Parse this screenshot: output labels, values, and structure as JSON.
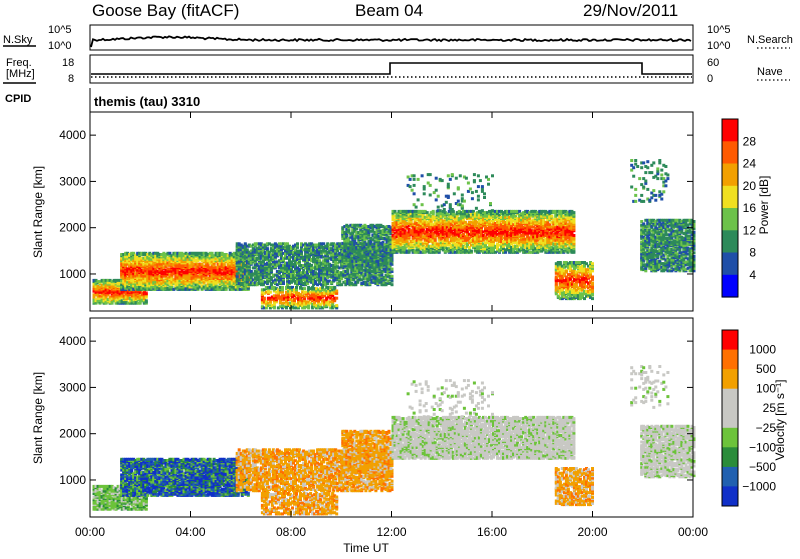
{
  "header": {
    "station": "Goose Bay (fitACF)",
    "beam": "Beam 04",
    "date": "29/Nov/2011"
  },
  "panels": {
    "nsky": {
      "label": "N.Sky",
      "right_label": "N.Search",
      "top_tick": "10^5",
      "bottom_tick": "10^0"
    },
    "freq": {
      "label_line1": "Freq.",
      "label_line2": "[MHz]",
      "right_label": "Nave",
      "left_ticks": [
        "18",
        "8"
      ],
      "right_ticks": [
        "60",
        "0"
      ]
    },
    "cpid": {
      "label": "CPID",
      "program": "themis (tau) 3310"
    }
  },
  "chart_data": [
    {
      "type": "heatmap",
      "name": "power",
      "ylabel": "Slant Range [km]",
      "yticks": [
        1000,
        2000,
        3000,
        4000
      ],
      "ylim": [
        200,
        4500
      ],
      "colorbar_label": "Power [dB]",
      "colorbar_ticks": [
        "28",
        "24",
        "20",
        "16",
        "12",
        "8",
        "4"
      ],
      "colors": [
        "#0000ff",
        "#1f4fa8",
        "#2d8a5a",
        "#6cc24a",
        "#f0e020",
        "#f2a000",
        "#ff5a00",
        "#ff0000"
      ]
    },
    {
      "type": "heatmap",
      "name": "velocity",
      "ylabel": "Slant Range [km]",
      "yticks": [
        1000,
        2000,
        3000,
        4000
      ],
      "ylim": [
        200,
        4500
      ],
      "colorbar_label": "Velocity [m s⁻¹]",
      "colorbar_ticks": [
        "1000",
        "500",
        "100",
        "25",
        "−25",
        "−100",
        "−500",
        "−1000"
      ],
      "colors": [
        "#1030c8",
        "#2060b0",
        "#2a8c3a",
        "#6cc33a",
        "#c8c8c4",
        "#c8c8c4",
        "#f2a000",
        "#ff7000",
        "#ff0000"
      ]
    }
  ],
  "xaxis": {
    "ticks": [
      "00:00",
      "04:00",
      "08:00",
      "12:00",
      "16:00",
      "20:00",
      "00:00"
    ],
    "label": "Time UT"
  }
}
